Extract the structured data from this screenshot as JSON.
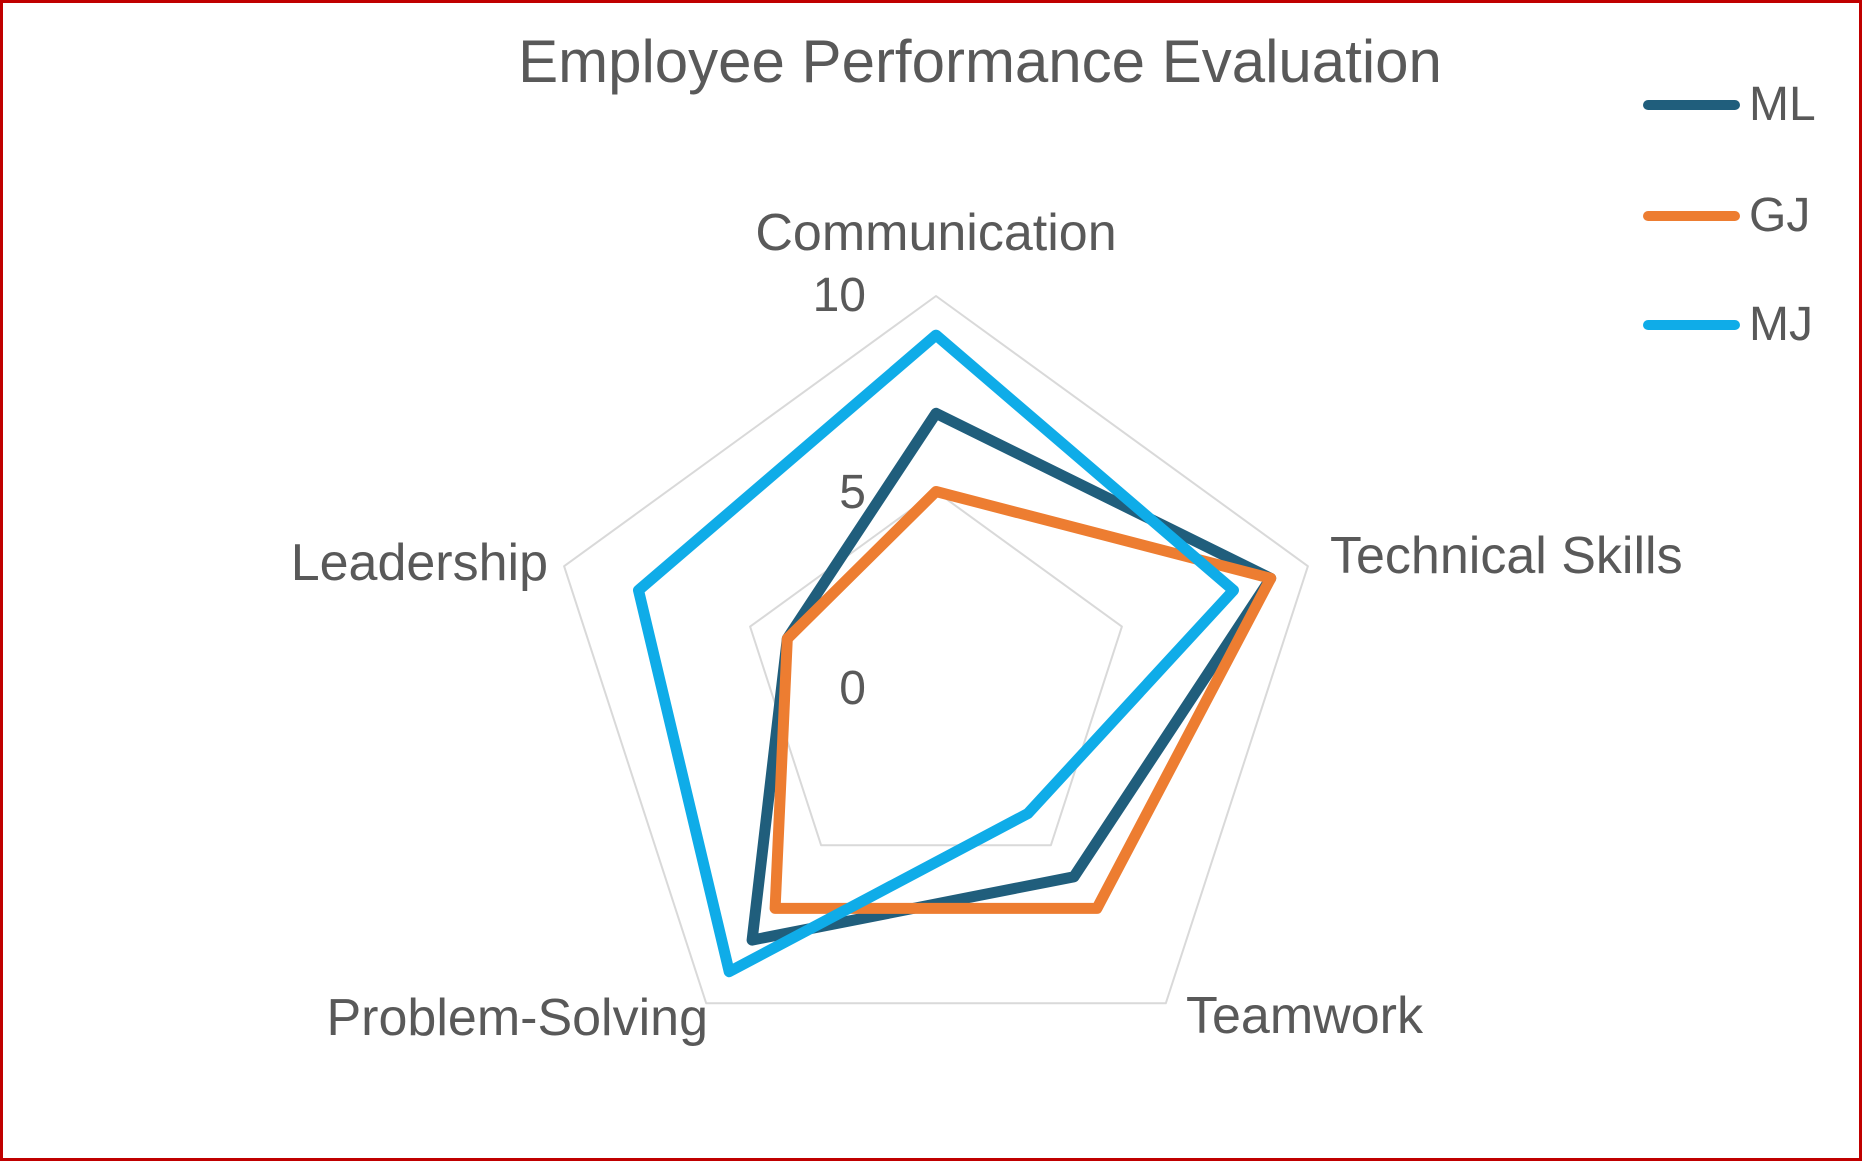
{
  "chart_data": {
    "type": "radar",
    "title": "Employee Performance Evaluation",
    "categories": [
      "Communication",
      "Technical Skills",
      "Teamwork",
      "Problem-Solving",
      "Leadership"
    ],
    "series": [
      {
        "name": "ML",
        "color": "#205E7C",
        "values": [
          7,
          9,
          6,
          8,
          4
        ]
      },
      {
        "name": "GJ",
        "color": "#ED7D31",
        "values": [
          5,
          9,
          7,
          7,
          4
        ]
      },
      {
        "name": "MJ",
        "color": "#0FACE8",
        "values": [
          9,
          8,
          4,
          9,
          8
        ]
      }
    ],
    "axis": {
      "min": 0,
      "max": 10,
      "ticks": [
        10,
        5,
        0
      ],
      "grid_values": [
        5,
        10
      ]
    },
    "grid_on": true,
    "legend_position": "top-right",
    "grid_color": "#D9D9D9",
    "text_color": "#595959",
    "border_color": "#C00000",
    "background_color": "#FFFFFF"
  }
}
